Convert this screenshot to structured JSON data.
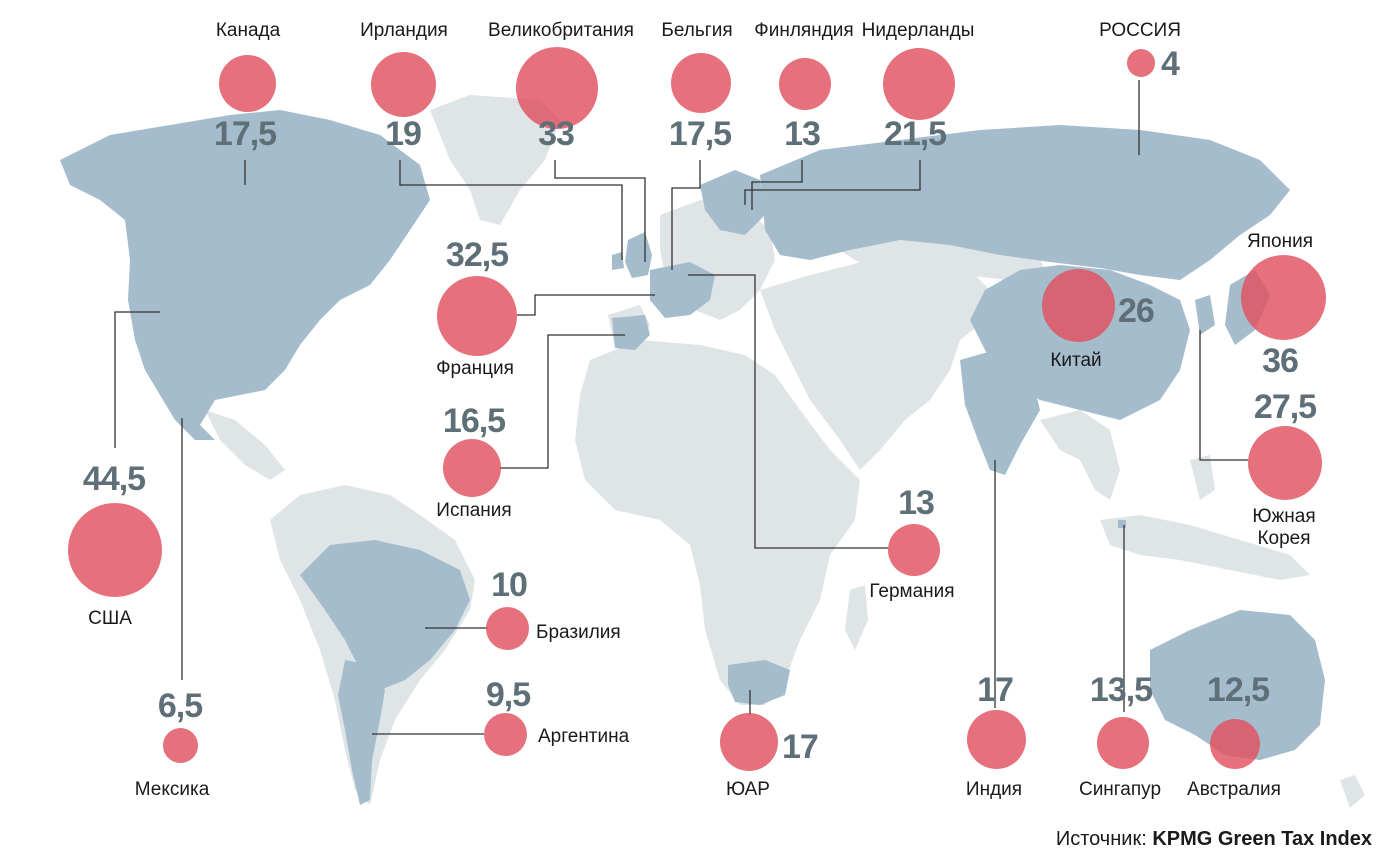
{
  "source": {
    "label": "Источник:",
    "value": "KPMG Green Tax Index"
  },
  "colors": {
    "land_highlight": "#a4bccb",
    "land_other": "#dfe4e6",
    "bubble": "#e0505f",
    "value_text": "#5f6f78",
    "leader_line": "#333333"
  },
  "countries": [
    {
      "id": "canada",
      "name": "Канада",
      "value": "17,5"
    },
    {
      "id": "ireland",
      "name": "Ирландия",
      "value": "19"
    },
    {
      "id": "uk",
      "name": "Великобритания",
      "value": "33"
    },
    {
      "id": "belgium",
      "name": "Бельгия",
      "value": "17,5"
    },
    {
      "id": "finland",
      "name": "Финляндия",
      "value": "13"
    },
    {
      "id": "netherlands",
      "name": "Нидерланды",
      "value": "21,5"
    },
    {
      "id": "russia",
      "name": "РОССИЯ",
      "value": "4"
    },
    {
      "id": "france",
      "name": "Франция",
      "value": "32,5"
    },
    {
      "id": "spain",
      "name": "Испания",
      "value": "16,5"
    },
    {
      "id": "usa",
      "name": "США",
      "value": "44,5"
    },
    {
      "id": "mexico",
      "name": "Мексика",
      "value": "6,5"
    },
    {
      "id": "brazil",
      "name": "Бразилия",
      "value": "10"
    },
    {
      "id": "argentina",
      "name": "Аргентина",
      "value": "9,5"
    },
    {
      "id": "south-africa",
      "name": "ЮАР",
      "value": "17"
    },
    {
      "id": "germany",
      "name": "Германия",
      "value": "13"
    },
    {
      "id": "china",
      "name": "Китай",
      "value": "26"
    },
    {
      "id": "japan",
      "name": "Япония",
      "value": "36"
    },
    {
      "id": "south-korea",
      "name": "Южная Корея",
      "value": "27,5"
    },
    {
      "id": "india",
      "name": "Индия",
      "value": "17"
    },
    {
      "id": "singapore",
      "name": "Сингапур",
      "value": "13,5"
    },
    {
      "id": "australia",
      "name": "Австралия",
      "value": "12,5"
    }
  ]
}
